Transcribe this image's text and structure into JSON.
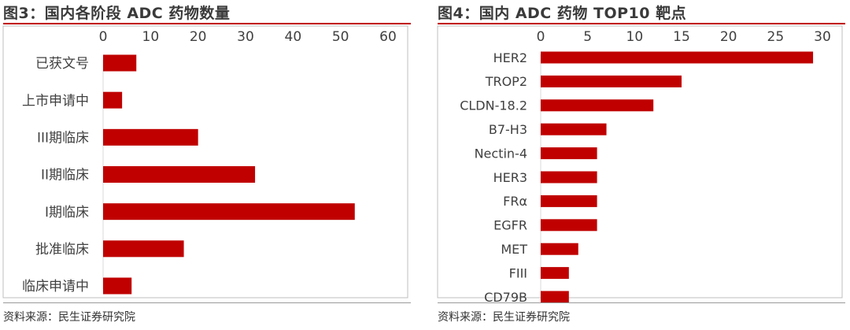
{
  "chart_data": [
    {
      "type": "bar",
      "orientation": "horizontal",
      "title": "图3：国内各阶段 ADC 药物数量",
      "categories": [
        "已获文号",
        "上市申请中",
        "III期临床",
        "II期临床",
        "I期临床",
        "批准临床",
        "临床申请中"
      ],
      "values": [
        7,
        4,
        20,
        32,
        53,
        17,
        6
      ],
      "xlim": [
        0,
        60
      ],
      "ticks": [
        0,
        10,
        20,
        30,
        40,
        50,
        60
      ],
      "axis_position": "top",
      "grid": false,
      "legend": "none",
      "bar_color": "#c00000",
      "source": "资料来源：民生证券研究院"
    },
    {
      "type": "bar",
      "orientation": "horizontal",
      "title": "图4：国内 ADC 药物 TOP10 靶点",
      "categories": [
        "HER2",
        "TROP2",
        "CLDN-18.2",
        "B7-H3",
        "Nectin-4",
        "HER3",
        "FRα",
        "EGFR",
        "MET",
        "FIII",
        "CD79B"
      ],
      "values": [
        29,
        15,
        12,
        7,
        6,
        6,
        6,
        6,
        4,
        3,
        3
      ],
      "xlim": [
        0,
        30
      ],
      "ticks": [
        0,
        5,
        10,
        15,
        20,
        25,
        30
      ],
      "axis_position": "top",
      "grid": false,
      "legend": "none",
      "bar_color": "#c00000",
      "source": "资料来源：民生证券研究院"
    }
  ],
  "colors": {
    "accent": "#c00000",
    "text": "#404040",
    "frame": "#bfbfbf"
  }
}
